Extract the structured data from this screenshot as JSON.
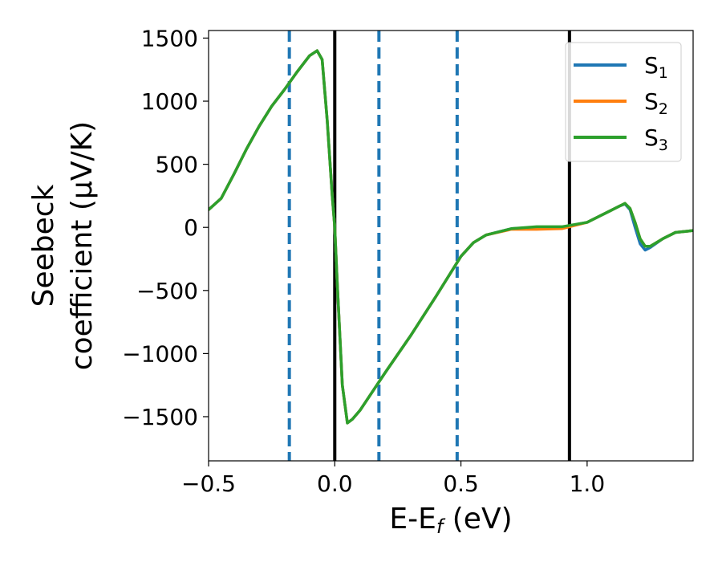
{
  "chart_data": {
    "type": "line",
    "xlabel": "E-E",
    "xlabel_sub": "f",
    "xlabel_tail": " (eV)",
    "ylabel_line1": "Seebeck",
    "ylabel_line2": "coefficient  (μV/K)",
    "xlim": [
      -0.5,
      1.42
    ],
    "ylim": [
      -1850,
      1560
    ],
    "x_ticks": [
      {
        "value": -0.5,
        "label": "−0.5"
      },
      {
        "value": 0.0,
        "label": "0.0"
      },
      {
        "value": 0.5,
        "label": "0.5"
      },
      {
        "value": 1.0,
        "label": "1.0"
      }
    ],
    "y_ticks": [
      {
        "value": 1500,
        "label": "1500"
      },
      {
        "value": 1000,
        "label": "1000"
      },
      {
        "value": 500,
        "label": "500"
      },
      {
        "value": 0,
        "label": "0"
      },
      {
        "value": -500,
        "label": "−500"
      },
      {
        "value": -1000,
        "label": "−1000"
      },
      {
        "value": -1500,
        "label": "−1500"
      }
    ],
    "vlines_solid": [
      0.0,
      0.93
    ],
    "vlines_dashed": [
      -0.18,
      0.175,
      0.485
    ],
    "legend_position": "top-right",
    "series": [
      {
        "name": "S",
        "sub": "1",
        "color": "#1f77b4",
        "x": [
          -0.5,
          -0.45,
          -0.4,
          -0.35,
          -0.3,
          -0.25,
          -0.2,
          -0.15,
          -0.1,
          -0.07,
          -0.05,
          -0.03,
          -0.01,
          0.0,
          0.01,
          0.03,
          0.05,
          0.07,
          0.1,
          0.15,
          0.2,
          0.3,
          0.4,
          0.5,
          0.55,
          0.6,
          0.7,
          0.8,
          0.9,
          1.0,
          1.05,
          1.1,
          1.13,
          1.15,
          1.17,
          1.19,
          1.21,
          1.23,
          1.25,
          1.3,
          1.35,
          1.4,
          1.42
        ],
        "y": [
          140,
          230,
          420,
          620,
          800,
          960,
          1090,
          1230,
          1360,
          1400,
          1330,
          850,
          250,
          0,
          -450,
          -1250,
          -1550,
          -1520,
          -1450,
          -1300,
          -1150,
          -860,
          -550,
          -230,
          -120,
          -60,
          -10,
          0,
          0,
          40,
          90,
          140,
          170,
          185,
          140,
          0,
          -130,
          -180,
          -160,
          -90,
          -40,
          -30,
          -25
        ]
      },
      {
        "name": "S",
        "sub": "2",
        "color": "#ff7f0e",
        "x": [
          -0.5,
          -0.45,
          -0.4,
          -0.35,
          -0.3,
          -0.25,
          -0.2,
          -0.15,
          -0.1,
          -0.07,
          -0.05,
          -0.03,
          -0.01,
          0.0,
          0.01,
          0.03,
          0.05,
          0.07,
          0.1,
          0.15,
          0.2,
          0.3,
          0.4,
          0.5,
          0.55,
          0.6,
          0.7,
          0.8,
          0.9,
          1.0,
          1.05,
          1.1,
          1.13,
          1.15,
          1.17,
          1.19,
          1.21,
          1.23,
          1.25,
          1.3,
          1.35,
          1.4,
          1.42
        ],
        "y": [
          140,
          230,
          420,
          620,
          800,
          960,
          1090,
          1230,
          1360,
          1400,
          1330,
          850,
          250,
          0,
          -450,
          -1250,
          -1550,
          -1520,
          -1450,
          -1300,
          -1150,
          -860,
          -550,
          -230,
          -120,
          -60,
          -15,
          -15,
          -10,
          40,
          90,
          140,
          170,
          190,
          150,
          40,
          -90,
          -150,
          -150,
          -90,
          -40,
          -30,
          -25
        ]
      },
      {
        "name": "S",
        "sub": "3",
        "color": "#2ca02c",
        "x": [
          -0.5,
          -0.45,
          -0.4,
          -0.35,
          -0.3,
          -0.25,
          -0.2,
          -0.15,
          -0.1,
          -0.07,
          -0.05,
          -0.03,
          -0.01,
          0.0,
          0.01,
          0.03,
          0.05,
          0.07,
          0.1,
          0.15,
          0.2,
          0.3,
          0.4,
          0.5,
          0.55,
          0.6,
          0.7,
          0.8,
          0.9,
          1.0,
          1.05,
          1.1,
          1.13,
          1.15,
          1.17,
          1.19,
          1.21,
          1.23,
          1.25,
          1.3,
          1.35,
          1.4,
          1.42
        ],
        "y": [
          140,
          230,
          420,
          620,
          800,
          960,
          1090,
          1230,
          1360,
          1400,
          1330,
          850,
          250,
          0,
          -450,
          -1250,
          -1550,
          -1520,
          -1450,
          -1300,
          -1150,
          -860,
          -550,
          -230,
          -120,
          -60,
          -10,
          5,
          5,
          40,
          90,
          140,
          170,
          190,
          150,
          40,
          -90,
          -150,
          -150,
          -90,
          -40,
          -30,
          -25
        ]
      }
    ]
  }
}
